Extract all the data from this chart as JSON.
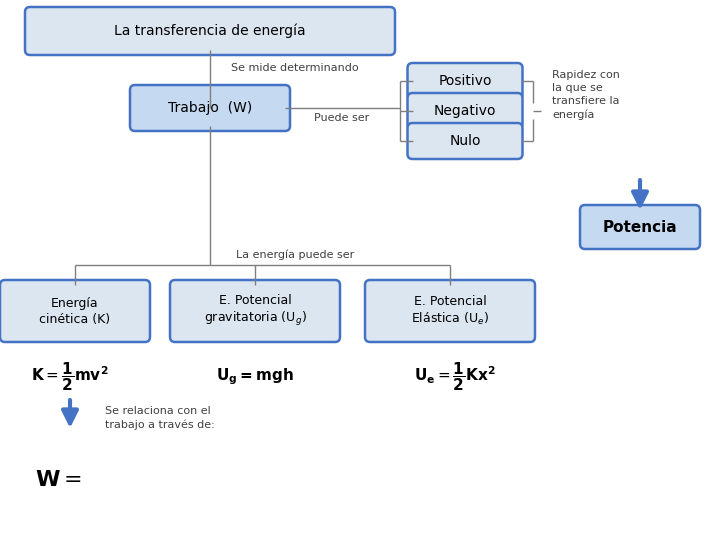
{
  "bg_color": "#ffffff",
  "box_fill_light": "#dce6f1",
  "box_fill_mid": "#c5d9f1",
  "box_edge": "#4472c4",
  "title": "La transferencia de energía",
  "node_trabajo": "Trabajo  (W)",
  "node_positivo": "Positivo",
  "node_negativo": "Negativo",
  "node_nulo": "Nulo",
  "node_potencia": "Potencia",
  "node_cinetica": "Energía\ncinética (K)",
  "node_potgrav": "E. Potencial\ngravitatoria (U_g)",
  "node_potelast": "E. Potencial\nElástica (U_e)",
  "label_mide": "Se mide determinando",
  "label_puede": "Puede ser",
  "label_rapidez": "Rapidez con\nla que se\ntransfiere la\nenergía",
  "label_energia_puede": "La energía puede ser",
  "label_relaciona": "Se relaciona con el\ntrabajo a través de:",
  "line_color": "#7f7f7f",
  "arrow_color": "#4472c4",
  "text_color": "#404040"
}
